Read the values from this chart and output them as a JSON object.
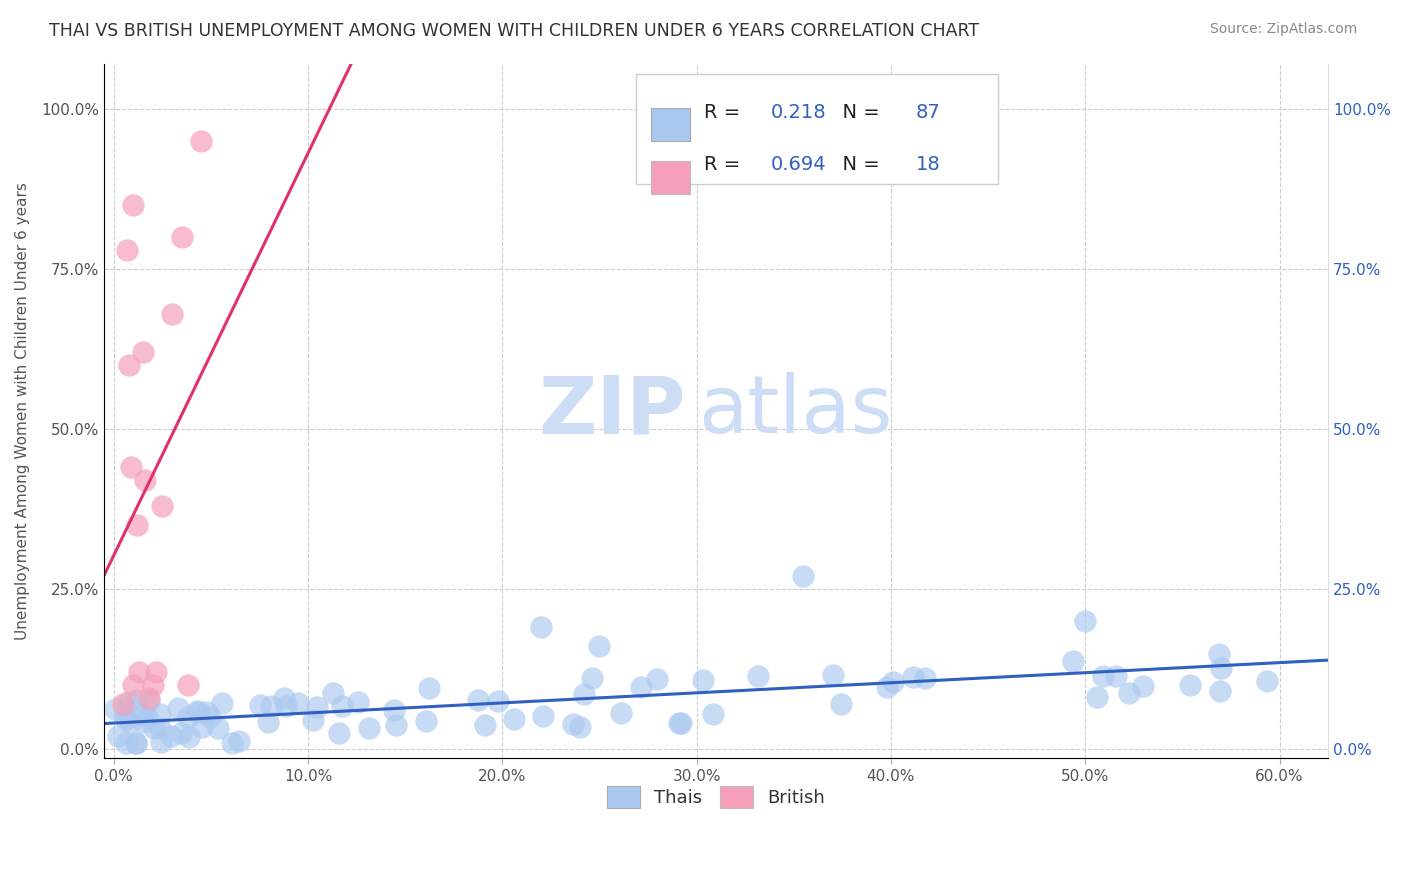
{
  "title": "THAI VS BRITISH UNEMPLOYMENT AMONG WOMEN WITH CHILDREN UNDER 6 YEARS CORRELATION CHART",
  "source": "Source: ZipAtlas.com",
  "ylabel_label": "Unemployment Among Women with Children Under 6 years",
  "xlim": [
    -0.005,
    0.625
  ],
  "ylim": [
    -0.015,
    1.07
  ],
  "x_ticks": [
    0.0,
    0.1,
    0.2,
    0.3,
    0.4,
    0.5,
    0.6
  ],
  "y_ticks": [
    0.0,
    0.25,
    0.5,
    0.75,
    1.0
  ],
  "thais_R": 0.218,
  "thais_N": 87,
  "british_R": 0.694,
  "british_N": 18,
  "thais_color": "#aac8f0",
  "british_color": "#f5a0b8",
  "thais_line_color": "#3060c0",
  "british_line_color": "#e03070",
  "watermark_ZIP": "ZIP",
  "watermark_atlas": "atlas",
  "watermark_color": "#ccddf5",
  "legend_color": "#3060c0",
  "title_color": "#333333",
  "source_color": "#888888",
  "ylabel_color": "#555555",
  "left_tick_color": "#555555",
  "right_tick_color": "#3060c0",
  "bottom_tick_color": "#555555",
  "british_x": [
    0.005,
    0.007,
    0.008,
    0.009,
    0.01,
    0.01,
    0.012,
    0.013,
    0.015,
    0.016,
    0.018,
    0.02,
    0.022,
    0.025,
    0.03,
    0.035,
    0.038,
    0.045
  ],
  "british_y": [
    0.07,
    0.78,
    0.6,
    0.44,
    0.85,
    0.1,
    0.35,
    0.12,
    0.62,
    0.42,
    0.08,
    0.1,
    0.12,
    0.38,
    0.68,
    0.8,
    0.1,
    0.95
  ]
}
